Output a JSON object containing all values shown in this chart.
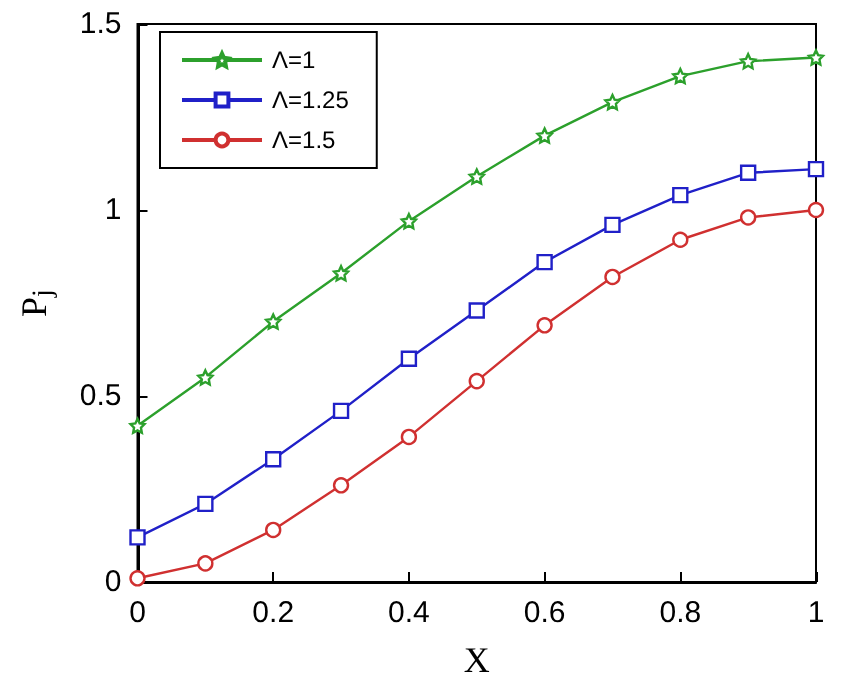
{
  "chart_data": {
    "type": "line",
    "xlabel": "X",
    "ylabel": "P$_{j}$",
    "x": [
      0,
      0.1,
      0.2,
      0.3,
      0.4,
      0.5,
      0.6,
      0.7,
      0.8,
      0.9,
      1
    ],
    "series": [
      {
        "name": "Λ=1",
        "color": "#2ca02c",
        "marker": "star",
        "values": [
          0.42,
          0.55,
          0.7,
          0.83,
          0.97,
          1.09,
          1.2,
          1.29,
          1.36,
          1.4,
          1.41
        ]
      },
      {
        "name": "Λ=1.25",
        "color": "#2020c8",
        "marker": "square",
        "values": [
          0.12,
          0.21,
          0.33,
          0.46,
          0.6,
          0.73,
          0.86,
          0.96,
          1.04,
          1.1,
          1.11
        ]
      },
      {
        "name": "Λ=1.5",
        "color": "#d03030",
        "marker": "circle",
        "values": [
          0.01,
          0.05,
          0.14,
          0.26,
          0.39,
          0.54,
          0.69,
          0.82,
          0.92,
          0.98,
          1.0
        ]
      }
    ],
    "xlim": [
      0,
      1
    ],
    "xticks": [
      0,
      0.2,
      0.4,
      0.6,
      0.8,
      1
    ],
    "ylim": [
      0,
      1.5
    ],
    "yticks": [
      0,
      0.5,
      1,
      1.5
    ],
    "grid": false,
    "legend": "top left",
    "line_style": "solid"
  }
}
